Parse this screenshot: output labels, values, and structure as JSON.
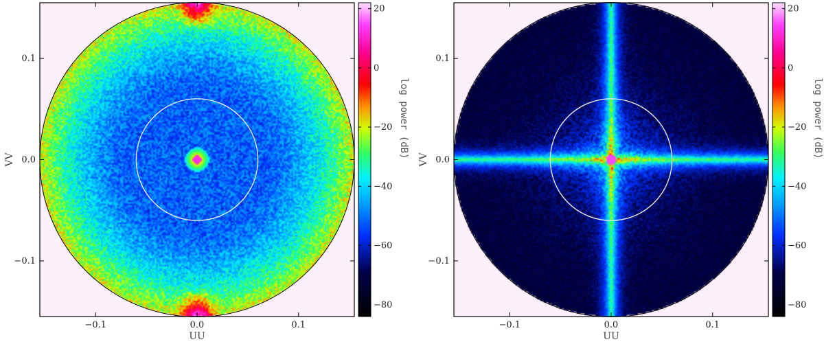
{
  "chart_data": [
    {
      "type": "heatmap",
      "xlabel": "UU",
      "ylabel": "VV",
      "xlim": [
        -0.155,
        0.155
      ],
      "ylim": [
        -0.155,
        0.155
      ],
      "xticks": [
        -0.1,
        0.0,
        0.1
      ],
      "xtick_labels": [
        "−0.1",
        "0.0",
        "0.1"
      ],
      "yticks": [
        -0.1,
        0.0,
        0.1
      ],
      "ytick_labels": [
        "−0.1",
        "0.0",
        "0.1"
      ],
      "disk_radius": 0.155,
      "reference_circle_radius": 0.06,
      "colorbar": {
        "label": "log power (dB)",
        "range": [
          -84,
          22
        ],
        "ticks": [
          20,
          0,
          -20,
          -40,
          -60,
          -80
        ],
        "tick_labels": [
          "20",
          "0",
          "−20",
          "−40",
          "−60",
          "−80"
        ]
      },
      "pattern": "isotropic-rings",
      "colors": {
        "background": "#fdf0fa",
        "reference_circle": "#e8e8e8"
      }
    },
    {
      "type": "heatmap",
      "xlabel": "UU",
      "ylabel": "VV",
      "xlim": [
        -0.155,
        0.155
      ],
      "ylim": [
        -0.155,
        0.155
      ],
      "xticks": [
        -0.1,
        0.0,
        0.1
      ],
      "xtick_labels": [
        "−0.1",
        "0.0",
        "0.1"
      ],
      "yticks": [
        -0.1,
        0.0,
        0.1
      ],
      "ytick_labels": [
        "−0.1",
        "0.0",
        "0.1"
      ],
      "disk_radius": 0.155,
      "reference_circle_radius": 0.06,
      "colorbar": {
        "label": "log power (dB)",
        "range": [
          -84,
          22
        ],
        "ticks": [
          20,
          0,
          -20,
          -40,
          -60,
          -80
        ],
        "tick_labels": [
          "20",
          "0",
          "−20",
          "−40",
          "−60",
          "−80"
        ]
      },
      "pattern": "cross",
      "colors": {
        "background": "#fdf0fa",
        "reference_circle": "#e8e8e8"
      }
    }
  ]
}
